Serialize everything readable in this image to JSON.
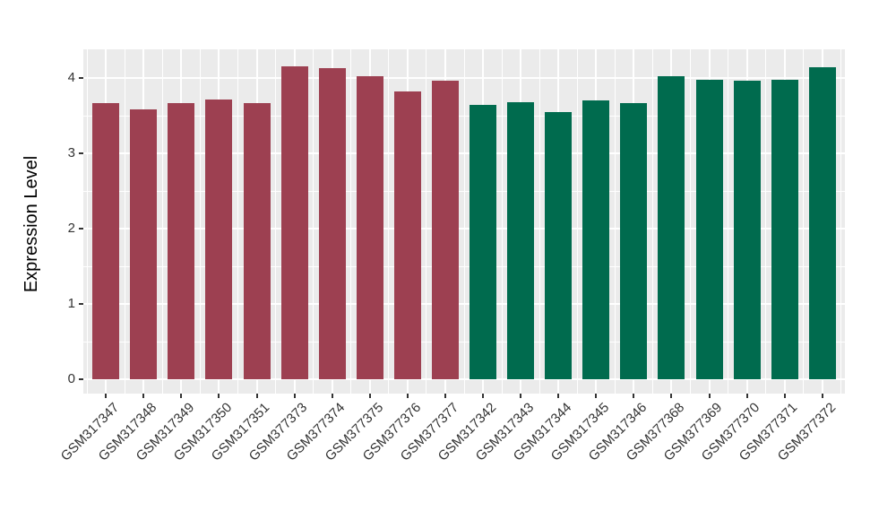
{
  "figure": {
    "background": "#ffffff",
    "panel_background": "#ebebeb",
    "gridline_color": "#ffffff",
    "axis_text_color": "#333333",
    "axis_title_color": "#000000"
  },
  "chart_data": {
    "type": "bar",
    "title": "",
    "xlabel": "",
    "ylabel": "Expression Level",
    "ylim": [
      0,
      4.38
    ],
    "yticks": [
      0,
      1,
      2,
      3,
      4
    ],
    "grid": "major and minor white gridlines on grey panel, ggplot style",
    "legend_position": "none",
    "categories": [
      "GSM317347",
      "GSM317348",
      "GSM317349",
      "GSM317350",
      "GSM317351",
      "GSM377373",
      "GSM377374",
      "GSM377375",
      "GSM377376",
      "GSM377377",
      "GSM317342",
      "GSM317343",
      "GSM317344",
      "GSM317345",
      "GSM317346",
      "GSM377368",
      "GSM377369",
      "GSM377370",
      "GSM377371",
      "GSM377372"
    ],
    "values": [
      3.67,
      3.58,
      3.67,
      3.72,
      3.67,
      4.15,
      4.13,
      4.02,
      3.82,
      3.97,
      3.64,
      3.68,
      3.55,
      3.7,
      3.67,
      4.02,
      3.98,
      3.97,
      3.98,
      4.14
    ],
    "bar_groups": [
      "maroon",
      "maroon",
      "maroon",
      "maroon",
      "maroon",
      "maroon",
      "maroon",
      "maroon",
      "maroon",
      "maroon",
      "green",
      "green",
      "green",
      "green",
      "green",
      "green",
      "green",
      "green",
      "green",
      "green"
    ],
    "group_colors": {
      "maroon": "#9d4051",
      "green": "#006b4e"
    }
  }
}
